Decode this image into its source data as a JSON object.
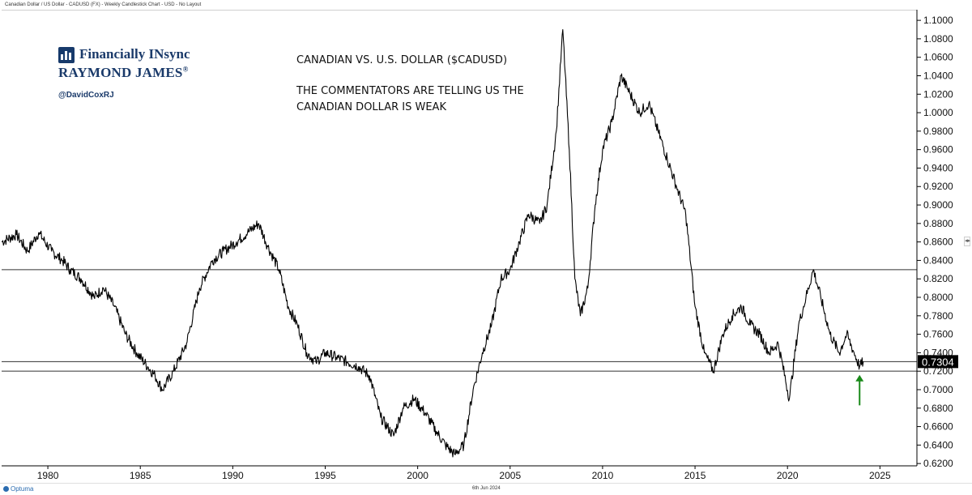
{
  "window": {
    "title": "Canadian Dollar / US Dollar - CADUSD (FX) - Weekly Candlestick Chart - USD - No Layout"
  },
  "branding": {
    "name": "Financially INsync",
    "company": "RAYMOND JAMES",
    "registered": "®",
    "handle": "@DavidCoxRJ",
    "color": "#1a3a6a"
  },
  "annotations": [
    "CANADIAN VS. U.S. DOLLAR ($CADUSD)",
    "THE COMMENTATORS ARE TELLING US THE",
    "CANADIAN DOLLAR IS WEAK"
  ],
  "footer": {
    "brand": "Optuma",
    "date": "6th Jun 2024"
  },
  "chart_data": {
    "type": "line",
    "title": "",
    "xlabel": "",
    "ylabel": "",
    "xlim": [
      1977.5,
      2027.0
    ],
    "ylim": [
      0.6175,
      1.1115
    ],
    "x_ticks": [
      1980,
      1985,
      1990,
      1995,
      2000,
      2005,
      2010,
      2015,
      2020,
      2025
    ],
    "y_ticks": [
      0.62,
      0.64,
      0.66,
      0.68,
      0.7,
      0.72,
      0.74,
      0.76,
      0.78,
      0.8,
      0.82,
      0.84,
      0.86,
      0.88,
      0.9,
      0.92,
      0.94,
      0.96,
      0.98,
      1.0,
      1.02,
      1.04,
      1.06,
      1.08,
      1.1
    ],
    "y_tick_labels": [
      "0.6200",
      "0.6400",
      "0.6600",
      "0.6800",
      "0.7000",
      "0.7200",
      "0.7400",
      "0.7600",
      "0.7800",
      "0.8000",
      "0.8200",
      "0.8400",
      "0.8600",
      "0.8800",
      "0.9000",
      "0.9200",
      "0.9400",
      "0.9600",
      "0.9800",
      "1.0000",
      "1.0200",
      "1.0400",
      "1.0600",
      "1.0800",
      "1.1000"
    ],
    "grid": false,
    "horizontal_lines": [
      0.83,
      0.7304,
      0.72
    ],
    "last_value": 0.7304,
    "last_value_label": "0.7304",
    "arrow": {
      "x": 2023.9,
      "y_from": 0.683,
      "y_to": 0.716,
      "color": "#1a8a1a"
    },
    "series": [
      {
        "color": "#000000",
        "x": [
          1977.5,
          1978.3,
          1978.9,
          1979.5,
          1980.2,
          1980.8,
          1981.2,
          1981.8,
          1982.5,
          1983.0,
          1983.6,
          1984.2,
          1984.8,
          1985.4,
          1985.8,
          1986.2,
          1986.8,
          1987.5,
          1988.2,
          1988.9,
          1989.5,
          1990.2,
          1990.8,
          1991.4,
          1991.9,
          1992.5,
          1993.0,
          1993.5,
          1994.0,
          1994.5,
          1995.0,
          1995.6,
          1996.2,
          1996.8,
          1997.4,
          1998.0,
          1998.7,
          1999.2,
          1999.8,
          2000.4,
          2001.0,
          2001.5,
          2002.0,
          2002.5,
          2003.0,
          2003.5,
          2004.0,
          2004.5,
          2005.0,
          2005.5,
          2006.0,
          2006.6,
          2007.0,
          2007.5,
          2007.85,
          2008.2,
          2008.5,
          2008.8,
          2009.2,
          2009.6,
          2010.0,
          2010.5,
          2011.0,
          2011.5,
          2012.0,
          2012.5,
          2013.0,
          2013.5,
          2014.0,
          2014.5,
          2015.0,
          2015.5,
          2016.0,
          2016.5,
          2017.0,
          2017.5,
          2018.0,
          2018.5,
          2019.0,
          2019.5,
          2020.1,
          2020.6,
          2021.0,
          2021.4,
          2021.8,
          2022.3,
          2022.8,
          2023.2,
          2023.6,
          2023.9,
          2024.1
        ],
        "y": [
          0.86,
          0.868,
          0.85,
          0.87,
          0.85,
          0.84,
          0.83,
          0.82,
          0.8,
          0.81,
          0.79,
          0.76,
          0.74,
          0.725,
          0.715,
          0.7,
          0.72,
          0.75,
          0.81,
          0.84,
          0.85,
          0.86,
          0.87,
          0.88,
          0.855,
          0.83,
          0.79,
          0.77,
          0.74,
          0.73,
          0.74,
          0.735,
          0.73,
          0.725,
          0.715,
          0.67,
          0.65,
          0.68,
          0.69,
          0.675,
          0.655,
          0.64,
          0.63,
          0.64,
          0.7,
          0.74,
          0.77,
          0.82,
          0.83,
          0.86,
          0.89,
          0.88,
          0.9,
          0.98,
          1.09,
          0.96,
          0.82,
          0.78,
          0.81,
          0.9,
          0.96,
          0.99,
          1.04,
          1.02,
          1.0,
          1.01,
          0.98,
          0.95,
          0.92,
          0.89,
          0.79,
          0.74,
          0.72,
          0.76,
          0.78,
          0.79,
          0.77,
          0.76,
          0.74,
          0.75,
          0.69,
          0.77,
          0.8,
          0.83,
          0.8,
          0.76,
          0.74,
          0.76,
          0.74,
          0.725,
          0.7304
        ]
      }
    ]
  }
}
